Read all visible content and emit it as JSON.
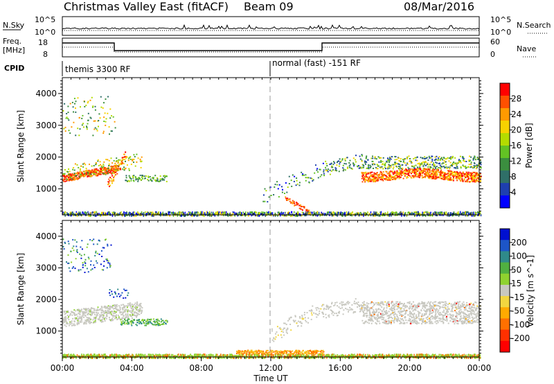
{
  "header": {
    "title": "Christmas Valley East (fitACF)",
    "beam": "Beam 09",
    "date": "08/Mar/2016"
  },
  "nsky_panel": {
    "label": "N.Sky",
    "left_ticks": [
      "10^5",
      "10^0"
    ],
    "right_label": "N.Search",
    "right_ticks": [
      "10^5",
      "10^0"
    ]
  },
  "freq_panel": {
    "label_line1": "Freq.",
    "label_line2": "[MHz]",
    "left_ticks": [
      "18",
      "8"
    ],
    "right_label": "Nave",
    "right_ticks": [
      "60",
      "0"
    ]
  },
  "cpid": {
    "label": "CPID",
    "mode1": "themis 3300 RF",
    "mode2": "normal (fast) -151 RF"
  },
  "chart_data": [
    {
      "type": "heatmap",
      "name": "power",
      "ylabel": "Slant Range [km]",
      "ylim": [
        180,
        4500
      ],
      "y_ticks": [
        "1000",
        "2000",
        "3000",
        "4000"
      ],
      "colorbar_label": "Power [dB]",
      "colorbar_ticks": [
        "28",
        "24",
        "20",
        "16",
        "12",
        "8",
        "4"
      ],
      "colors": [
        "#ff0000",
        "#ff5000",
        "#ff9a00",
        "#f7d200",
        "#b4dc00",
        "#63c224",
        "#3b8e3f",
        "#2f6f68",
        "#1e3faf",
        "#0000ff"
      ]
    },
    {
      "type": "heatmap",
      "name": "velocity",
      "ylabel": "Slant Range [km]",
      "xlabel": "Time UT",
      "ylim": [
        180,
        4500
      ],
      "y_ticks": [
        "1000",
        "2000",
        "3000",
        "4000"
      ],
      "x_ticks": [
        "00:00",
        "04:00",
        "08:00",
        "12:00",
        "16:00",
        "20:00",
        "00:00"
      ],
      "colorbar_label": "Velocity [m s^-1]",
      "colorbar_ticks": [
        "200",
        "100",
        "50",
        "15",
        "-15",
        "-50",
        "-100",
        "-200"
      ],
      "colors": [
        "#0010d0",
        "#1d55c8",
        "#2f8a8a",
        "#50b040",
        "#8fd22f",
        "#c8c8c0",
        "#f2d640",
        "#ffaa00",
        "#ff7000",
        "#ff3000",
        "#ff0000"
      ]
    }
  ]
}
